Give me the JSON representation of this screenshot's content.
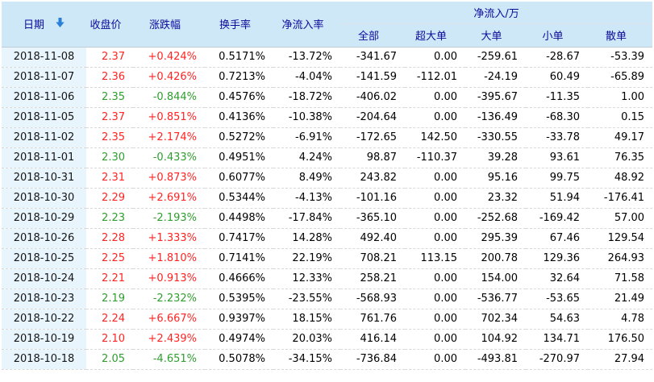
{
  "header": {
    "date": "日期",
    "close": "收盘价",
    "change": "涨跌幅",
    "turnover": "换手率",
    "inflow_rate": "净流入率",
    "group": {
      "label": "净流入/万",
      "children": [
        "全部",
        "超大单",
        "大单",
        "小单",
        "散单"
      ]
    },
    "sort_icon": "arrow-down"
  },
  "colors": {
    "header_bg": "#cfe8f8",
    "header_text": "#0b0b9b",
    "date_cell_bg": "#e9f5fd",
    "up_red": "#ff2424",
    "down_green": "#2e9e2e",
    "sort_arrow_blue": "#2a80d8",
    "row_divider": "#d9d9d9"
  },
  "rows": [
    {
      "date": "2018-11-08",
      "close": "2.37",
      "change": "+0.424%",
      "trend": "up",
      "turnover": "0.5171%",
      "inflow_rate": "-13.72%",
      "inflow_all": "-341.67",
      "inflow_super": "0.00",
      "inflow_large": "-259.61",
      "inflow_small": "-28.67",
      "inflow_retail": "-53.39"
    },
    {
      "date": "2018-11-07",
      "close": "2.36",
      "change": "+0.426%",
      "trend": "up",
      "turnover": "0.7213%",
      "inflow_rate": "-4.04%",
      "inflow_all": "-141.59",
      "inflow_super": "-112.01",
      "inflow_large": "-24.19",
      "inflow_small": "60.49",
      "inflow_retail": "-65.89"
    },
    {
      "date": "2018-11-06",
      "close": "2.35",
      "change": "-0.844%",
      "trend": "down",
      "turnover": "0.4576%",
      "inflow_rate": "-18.72%",
      "inflow_all": "-406.02",
      "inflow_super": "0.00",
      "inflow_large": "-395.67",
      "inflow_small": "-11.35",
      "inflow_retail": "1.00"
    },
    {
      "date": "2018-11-05",
      "close": "2.37",
      "change": "+0.851%",
      "trend": "up",
      "turnover": "0.4136%",
      "inflow_rate": "-10.38%",
      "inflow_all": "-204.64",
      "inflow_super": "0.00",
      "inflow_large": "-136.49",
      "inflow_small": "-68.30",
      "inflow_retail": "0.15"
    },
    {
      "date": "2018-11-02",
      "close": "2.35",
      "change": "+2.174%",
      "trend": "up",
      "turnover": "0.5272%",
      "inflow_rate": "-6.91%",
      "inflow_all": "-172.65",
      "inflow_super": "142.50",
      "inflow_large": "-330.55",
      "inflow_small": "-33.78",
      "inflow_retail": "49.17"
    },
    {
      "date": "2018-11-01",
      "close": "2.30",
      "change": "-0.433%",
      "trend": "down",
      "turnover": "0.4951%",
      "inflow_rate": "4.24%",
      "inflow_all": "98.87",
      "inflow_super": "-110.37",
      "inflow_large": "39.28",
      "inflow_small": "93.61",
      "inflow_retail": "76.35"
    },
    {
      "date": "2018-10-31",
      "close": "2.31",
      "change": "+0.873%",
      "trend": "up",
      "turnover": "0.6077%",
      "inflow_rate": "8.49%",
      "inflow_all": "243.82",
      "inflow_super": "0.00",
      "inflow_large": "95.16",
      "inflow_small": "99.75",
      "inflow_retail": "48.92"
    },
    {
      "date": "2018-10-30",
      "close": "2.29",
      "change": "+2.691%",
      "trend": "up",
      "turnover": "0.5344%",
      "inflow_rate": "-4.13%",
      "inflow_all": "-101.16",
      "inflow_super": "0.00",
      "inflow_large": "23.32",
      "inflow_small": "51.94",
      "inflow_retail": "-176.41"
    },
    {
      "date": "2018-10-29",
      "close": "2.23",
      "change": "-2.193%",
      "trend": "down",
      "turnover": "0.4498%",
      "inflow_rate": "-17.84%",
      "inflow_all": "-365.10",
      "inflow_super": "0.00",
      "inflow_large": "-252.68",
      "inflow_small": "-169.42",
      "inflow_retail": "57.00"
    },
    {
      "date": "2018-10-26",
      "close": "2.28",
      "change": "+1.333%",
      "trend": "up",
      "turnover": "0.7417%",
      "inflow_rate": "14.28%",
      "inflow_all": "492.40",
      "inflow_super": "0.00",
      "inflow_large": "295.39",
      "inflow_small": "67.46",
      "inflow_retail": "129.54"
    },
    {
      "date": "2018-10-25",
      "close": "2.25",
      "change": "+1.810%",
      "trend": "up",
      "turnover": "0.7141%",
      "inflow_rate": "22.19%",
      "inflow_all": "708.21",
      "inflow_super": "113.15",
      "inflow_large": "200.78",
      "inflow_small": "129.36",
      "inflow_retail": "264.93"
    },
    {
      "date": "2018-10-24",
      "close": "2.21",
      "change": "+0.913%",
      "trend": "up",
      "turnover": "0.4666%",
      "inflow_rate": "12.33%",
      "inflow_all": "258.21",
      "inflow_super": "0.00",
      "inflow_large": "154.00",
      "inflow_small": "32.64",
      "inflow_retail": "71.58"
    },
    {
      "date": "2018-10-23",
      "close": "2.19",
      "change": "-2.232%",
      "trend": "down",
      "turnover": "0.5395%",
      "inflow_rate": "-23.55%",
      "inflow_all": "-568.93",
      "inflow_super": "0.00",
      "inflow_large": "-536.77",
      "inflow_small": "-53.65",
      "inflow_retail": "21.49"
    },
    {
      "date": "2018-10-22",
      "close": "2.24",
      "change": "+6.667%",
      "trend": "up",
      "turnover": "0.9397%",
      "inflow_rate": "18.15%",
      "inflow_all": "761.76",
      "inflow_super": "0.00",
      "inflow_large": "702.34",
      "inflow_small": "54.63",
      "inflow_retail": "4.78"
    },
    {
      "date": "2018-10-19",
      "close": "2.10",
      "change": "+2.439%",
      "trend": "up",
      "turnover": "0.4974%",
      "inflow_rate": "20.03%",
      "inflow_all": "416.14",
      "inflow_super": "0.00",
      "inflow_large": "104.92",
      "inflow_small": "134.71",
      "inflow_retail": "176.50"
    },
    {
      "date": "2018-10-18",
      "close": "2.05",
      "change": "-4.651%",
      "trend": "down",
      "turnover": "0.5078%",
      "inflow_rate": "-34.15%",
      "inflow_all": "-736.84",
      "inflow_super": "0.00",
      "inflow_large": "-493.81",
      "inflow_small": "-270.97",
      "inflow_retail": "27.94"
    }
  ]
}
